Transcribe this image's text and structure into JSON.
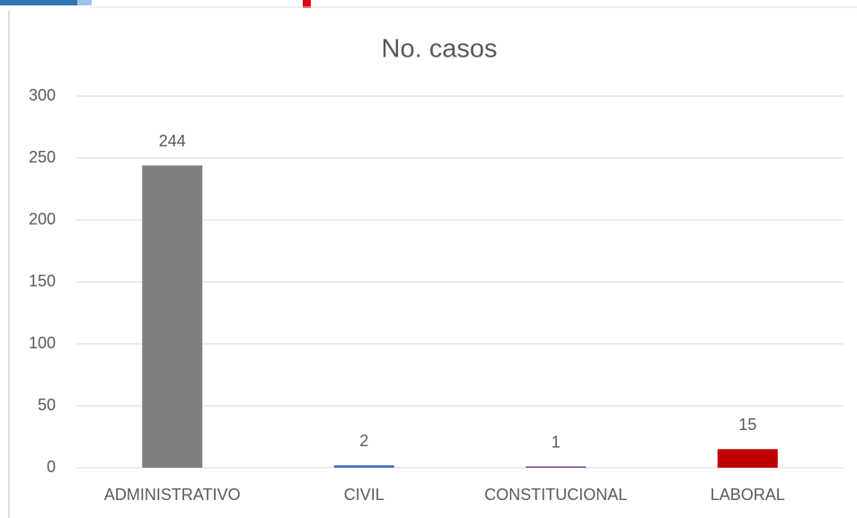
{
  "chart_data": {
    "type": "bar",
    "title": "No. casos",
    "categories": [
      "ADMINISTRATIVO",
      "CIVIL",
      "CONSTITUCIONAL",
      "LABORAL"
    ],
    "values": [
      244,
      2,
      1,
      15
    ],
    "colors": [
      "#7f7f7f",
      "#4472c4",
      "#7030a0",
      "#c00000"
    ],
    "ylim": [
      0,
      300
    ],
    "yticks": [
      0,
      50,
      100,
      150,
      200,
      250,
      300
    ],
    "grid": true
  }
}
